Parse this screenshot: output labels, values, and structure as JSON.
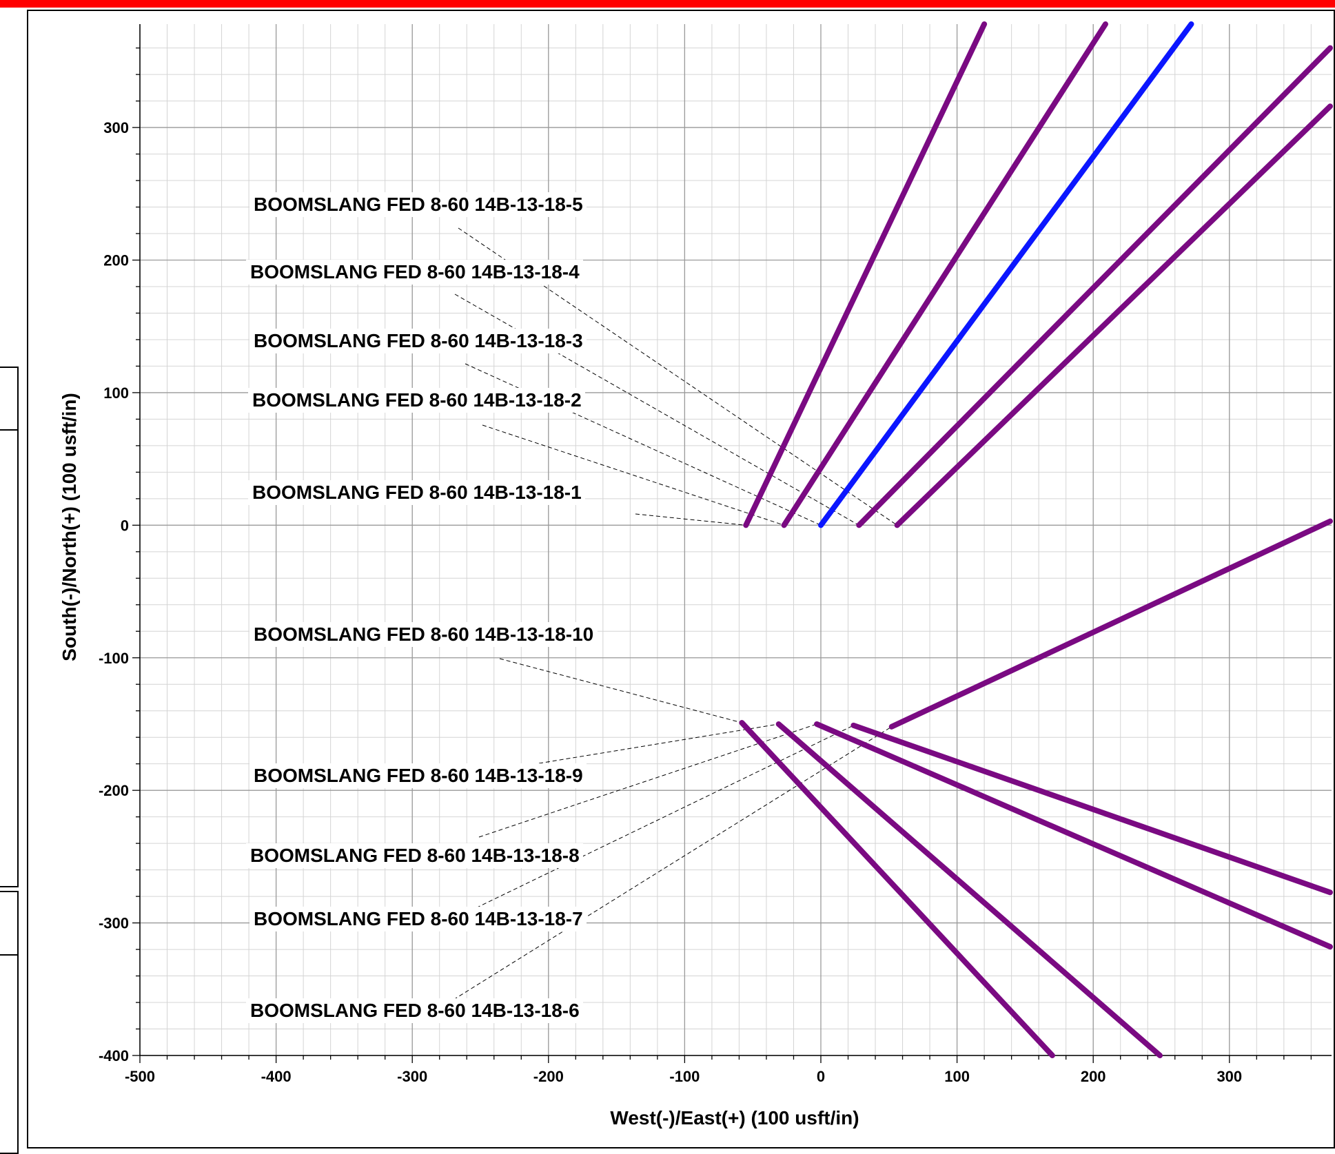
{
  "chart_data": {
    "type": "line",
    "xlabel": "West(-)/East(+) (100 usft/in)",
    "ylabel": "South(-)/North(+) (100 usft/in)",
    "xlim": [
      -500,
      375
    ],
    "ylim": [
      -400,
      378
    ],
    "x_ticks": [
      -500,
      -400,
      -300,
      -200,
      -100,
      0,
      100,
      200,
      300
    ],
    "y_ticks": [
      -400,
      -300,
      -200,
      -100,
      0,
      100,
      200,
      300
    ],
    "grid": true,
    "series": [
      {
        "name": "BOOMSLANG FED 8-60 14B-13-18-1",
        "color": "#7a0a82",
        "x": [
          -55,
          120
        ],
        "y": [
          0,
          378
        ]
      },
      {
        "name": "BOOMSLANG FED 8-60 14B-13-18-2",
        "color": "#7a0a82",
        "x": [
          -27,
          209
        ],
        "y": [
          0,
          378
        ]
      },
      {
        "name": "BOOMSLANG FED 8-60 14B-13-18-3",
        "color": "#0b16ff",
        "x": [
          0,
          272
        ],
        "y": [
          0,
          378
        ]
      },
      {
        "name": "BOOMSLANG FED 8-60 14B-13-18-4",
        "color": "#7a0a82",
        "x": [
          28,
          374
        ],
        "y": [
          0,
          360
        ]
      },
      {
        "name": "BOOMSLANG FED 8-60 14B-13-18-5",
        "color": "#7a0a82",
        "x": [
          56,
          374
        ],
        "y": [
          0,
          316
        ]
      },
      {
        "name": "BOOMSLANG FED 8-60 14B-13-18-6",
        "color": "#7a0a82",
        "x": [
          -58,
          170
        ],
        "y": [
          -149,
          -400
        ]
      },
      {
        "name": "BOOMSLANG FED 8-60 14B-13-18-7",
        "color": "#7a0a82",
        "x": [
          -31,
          249
        ],
        "y": [
          -150,
          -400
        ]
      },
      {
        "name": "BOOMSLANG FED 8-60 14B-13-18-8",
        "color": "#7a0a82",
        "x": [
          -3,
          374
        ],
        "y": [
          -150,
          -318
        ]
      },
      {
        "name": "BOOMSLANG FED 8-60 14B-13-18-9",
        "color": "#7a0a82",
        "x": [
          24,
          374
        ],
        "y": [
          -151,
          -277
        ]
      },
      {
        "name": "BOOMSLANG FED 8-60 14B-13-18-10",
        "color": "#7a0a82",
        "x": [
          52,
          374
        ],
        "y": [
          -152,
          3
        ]
      }
    ],
    "annotations": [
      {
        "text": "BOOMSLANG FED 8-60 14B-13-18-5",
        "series": 4
      },
      {
        "text": "BOOMSLANG FED 8-60 14B-13-18-4",
        "series": 3
      },
      {
        "text": "BOOMSLANG FED 8-60 14B-13-18-3",
        "series": 2
      },
      {
        "text": "BOOMSLANG FED 8-60 14B-13-18-2",
        "series": 1
      },
      {
        "text": "BOOMSLANG FED 8-60 14B-13-18-1",
        "series": 0
      },
      {
        "text": "BOOMSLANG FED 8-60 14B-13-18-10",
        "series": 5
      },
      {
        "text": "BOOMSLANG FED 8-60 14B-13-18-9",
        "series": 6
      },
      {
        "text": "BOOMSLANG FED 8-60 14B-13-18-8",
        "series": 7
      },
      {
        "text": "BOOMSLANG FED 8-60 14B-13-18-7",
        "series": 8
      },
      {
        "text": "BOOMSLANG FED 8-60 14B-13-18-6",
        "series": 9
      }
    ]
  }
}
